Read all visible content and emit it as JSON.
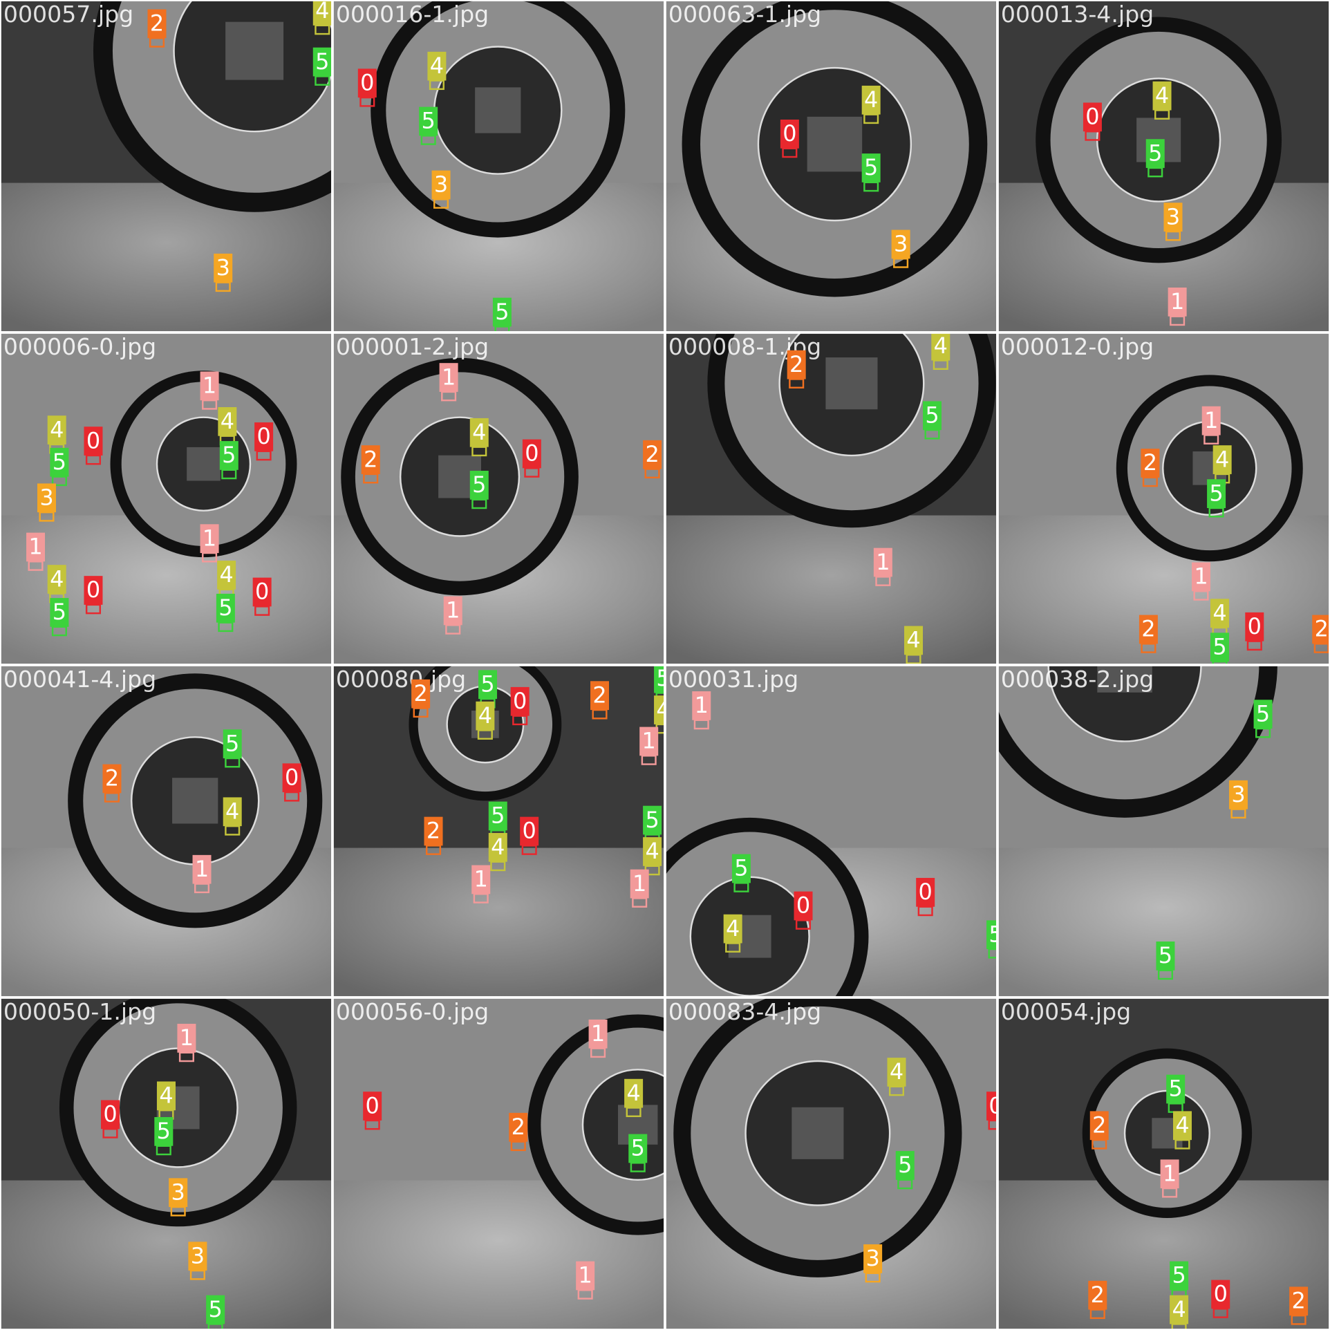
{
  "tiles": [
    {
      "name": "000057.jpg",
      "labels": [
        "2",
        "4",
        "5",
        "3"
      ]
    },
    {
      "name": "000016-1.jpg",
      "labels": [
        "0",
        "4",
        "5",
        "3",
        "5"
      ]
    },
    {
      "name": "000063-1.jpg",
      "labels": [
        "0",
        "4",
        "5",
        "3"
      ]
    },
    {
      "name": "000013-4.jpg",
      "labels": [
        "0",
        "4",
        "5",
        "3",
        "1"
      ]
    },
    {
      "name": "000006-0.jpg",
      "labels": [
        "1",
        "4",
        "0",
        "4",
        "5",
        "0",
        "5",
        "3",
        "1",
        "1",
        "4",
        "0",
        "4",
        "5",
        "5",
        "0"
      ]
    },
    {
      "name": "000001-2.jpg",
      "labels": [
        "1",
        "4",
        "2",
        "0",
        "5",
        "2",
        "1"
      ]
    },
    {
      "name": "000008-1.jpg",
      "labels": [
        "2",
        "4",
        "5",
        "1",
        "4"
      ]
    },
    {
      "name": "000012-0.jpg",
      "labels": [
        "1",
        "2",
        "4",
        "5",
        "1",
        "4",
        "2",
        "0",
        "5",
        "2"
      ]
    },
    {
      "name": "000041-4.jpg",
      "labels": [
        "5",
        "2",
        "0",
        "4",
        "1"
      ]
    },
    {
      "name": "000080.jpg",
      "labels": [
        "2",
        "5",
        "0",
        "4",
        "2",
        "5",
        "4",
        "1",
        "5",
        "0",
        "2",
        "4",
        "1",
        "5",
        "4",
        "1"
      ]
    },
    {
      "name": "000031.jpg",
      "labels": [
        "1",
        "5",
        "0",
        "4",
        "0",
        "5"
      ]
    },
    {
      "name": "000038-2.jpg",
      "labels": [
        "5",
        "3",
        "5"
      ]
    },
    {
      "name": "000050-1.jpg",
      "labels": [
        "1",
        "4",
        "0",
        "5",
        "3",
        "3",
        "5"
      ]
    },
    {
      "name": "000056-0.jpg",
      "labels": [
        "1",
        "0",
        "4",
        "2",
        "5",
        "1"
      ]
    },
    {
      "name": "000083-4.jpg",
      "labels": [
        "4",
        "0",
        "5",
        "3"
      ]
    },
    {
      "name": "000054.jpg",
      "labels": [
        "5",
        "2",
        "4",
        "1",
        "5",
        "2",
        "0",
        "2",
        "4"
      ]
    }
  ]
}
